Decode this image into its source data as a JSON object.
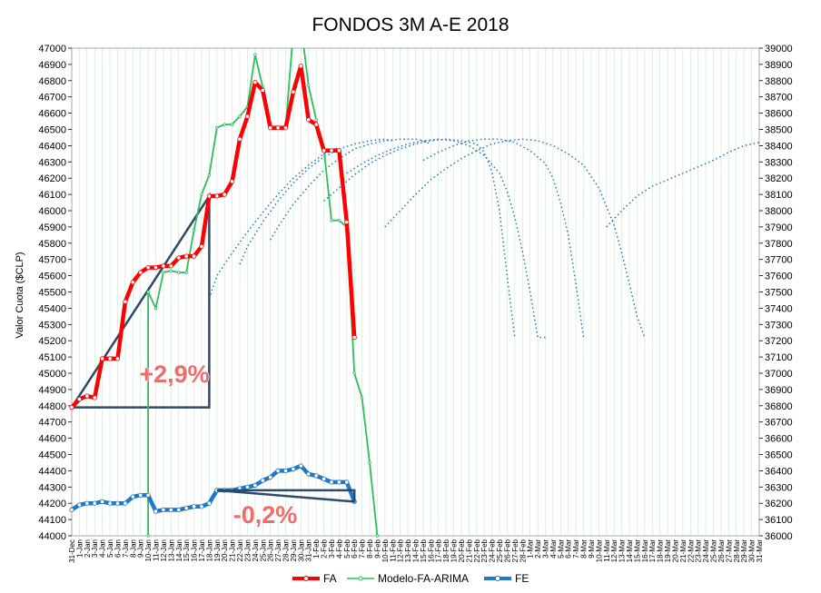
{
  "chart_data": {
    "type": "line",
    "title": "FONDOS 3M A-E 2018",
    "ylabel": "Valor Cuota ($CLP)",
    "y_left_range": [
      44000,
      47000
    ],
    "y_right_range": [
      36000,
      39000
    ],
    "y_left_ticks": [
      "44000",
      "44100",
      "44200",
      "44300",
      "44400",
      "44500",
      "44600",
      "44700",
      "44800",
      "44900",
      "45000",
      "45100",
      "45200",
      "45300",
      "45400",
      "45500",
      "45600",
      "45700",
      "45800",
      "45900",
      "46000",
      "46100",
      "46200",
      "46300",
      "46400",
      "46500",
      "46600",
      "46700",
      "46800",
      "46900",
      "47000"
    ],
    "y_right_ticks": [
      "36000",
      "36100",
      "36200",
      "36300",
      "36400",
      "36500",
      "36600",
      "36700",
      "36800",
      "36900",
      "37000",
      "37100",
      "37200",
      "37300",
      "37400",
      "37500",
      "37600",
      "37700",
      "37800",
      "37900",
      "38000",
      "38100",
      "38200",
      "38300",
      "38400",
      "38500",
      "38600",
      "38700",
      "38800",
      "38900",
      "39000"
    ],
    "x_labels": [
      "31-Dec",
      "1-Jan",
      "2-Jan",
      "3-Jan",
      "4-Jan",
      "5-Jan",
      "6-Jan",
      "7-Jan",
      "8-Jan",
      "9-Jan",
      "10-Jan",
      "11-Jan",
      "12-Jan",
      "13-Jan",
      "14-Jan",
      "15-Jan",
      "16-Jan",
      "17-Jan",
      "18-Jan",
      "19-Jan",
      "20-Jan",
      "21-Jan",
      "22-Jan",
      "23-Jan",
      "24-Jan",
      "25-Jan",
      "26-Jan",
      "27-Jan",
      "28-Jan",
      "29-Jan",
      "30-Jan",
      "31-Jan",
      "1-Feb",
      "2-Feb",
      "3-Feb",
      "4-Feb",
      "5-Feb",
      "6-Feb",
      "7-Feb",
      "8-Feb",
      "9-Feb",
      "10-Feb",
      "11-Feb",
      "12-Feb",
      "13-Feb",
      "14-Feb",
      "15-Feb",
      "16-Feb",
      "17-Feb",
      "18-Feb",
      "19-Feb",
      "20-Feb",
      "21-Feb",
      "22-Feb",
      "23-Feb",
      "24-Feb",
      "25-Feb",
      "26-Feb",
      "27-Feb",
      "28-Feb",
      "1-Mar",
      "2-Mar",
      "3-Mar",
      "4-Mar",
      "5-Mar",
      "6-Mar",
      "7-Mar",
      "8-Mar",
      "9-Mar",
      "10-Mar",
      "11-Mar",
      "12-Mar",
      "13-Mar",
      "14-Mar",
      "15-Mar",
      "16-Mar",
      "17-Mar",
      "18-Mar",
      "19-Mar",
      "20-Mar",
      "21-Mar",
      "22-Mar",
      "23-Mar",
      "24-Mar",
      "25-Mar",
      "26-Mar",
      "27-Mar",
      "28-Mar",
      "29-Mar",
      "30-Mar",
      "31-Mar"
    ],
    "series": [
      {
        "name": "FA",
        "axis": "left",
        "color": "#ff0000",
        "x": [
          0,
          1,
          2,
          3,
          4,
          5,
          6,
          7,
          8,
          9,
          10,
          11,
          12,
          13,
          14,
          15,
          16,
          17,
          18,
          19,
          20,
          21,
          22,
          23,
          24,
          25,
          26,
          27,
          28,
          29,
          30,
          31,
          32,
          33,
          34,
          35,
          36,
          37
        ],
        "values": [
          44790,
          44840,
          44860,
          44850,
          45090,
          45090,
          45090,
          45440,
          45560,
          45620,
          45650,
          45650,
          45660,
          45660,
          45710,
          45720,
          45720,
          45780,
          46090,
          46090,
          46100,
          46180,
          46440,
          46580,
          46790,
          46740,
          46510,
          46510,
          46510,
          46730,
          46890,
          46560,
          46530,
          46370,
          46370,
          46370,
          45930,
          45220
        ]
      },
      {
        "name": "Modelo-FA-ARIMA",
        "axis": "left",
        "color": "#2ebd5f",
        "x": [
          10,
          10,
          11,
          12,
          13,
          14,
          15,
          16,
          17,
          18,
          19,
          20,
          21,
          22,
          23,
          24,
          25,
          26,
          27,
          28,
          29,
          30,
          31,
          32,
          33,
          34,
          35,
          36,
          37,
          38,
          39,
          40
        ],
        "values": [
          44000,
          45500,
          45400,
          45620,
          45630,
          45620,
          45620,
          45880,
          46100,
          46220,
          46510,
          46530,
          46530,
          46580,
          46640,
          46960,
          46760,
          46510,
          46510,
          46510,
          47100,
          47150,
          46770,
          46560,
          46380,
          45940,
          45940,
          45900,
          45000,
          44850,
          44450,
          44000
        ]
      },
      {
        "name": "FE",
        "axis": "right",
        "color": "#1f78c8",
        "x": [
          0,
          1,
          2,
          3,
          4,
          5,
          6,
          7,
          8,
          9,
          10,
          11,
          12,
          13,
          14,
          15,
          16,
          17,
          18,
          19,
          20,
          21,
          22,
          23,
          24,
          25,
          26,
          27,
          28,
          29,
          30,
          31,
          32,
          33,
          34,
          35,
          36,
          37
        ],
        "values": [
          36160,
          36190,
          36200,
          36200,
          36210,
          36200,
          36200,
          36200,
          36240,
          36250,
          36250,
          36150,
          36160,
          36160,
          36160,
          36170,
          36180,
          36180,
          36200,
          36280,
          36280,
          36280,
          36290,
          36300,
          36310,
          36340,
          36360,
          36400,
          36400,
          36410,
          36430,
          36380,
          36370,
          36350,
          36330,
          36330,
          36330,
          36210
        ]
      }
    ],
    "forecasts": [
      {
        "axis": "left",
        "x": [
          18,
          19,
          21,
          23,
          25,
          27,
          29,
          31,
          33,
          35
        ],
        "values": [
          45460,
          45600,
          45740,
          45870,
          45990,
          46100,
          46200,
          46280,
          46350,
          46390
        ]
      },
      {
        "axis": "left",
        "x": [
          22,
          23,
          25,
          27,
          29,
          31,
          33,
          35,
          37,
          39,
          41,
          42
        ],
        "values": [
          45670,
          45780,
          45930,
          46060,
          46170,
          46260,
          46330,
          46380,
          46410,
          46430,
          46440,
          46430
        ]
      },
      {
        "axis": "left",
        "x": [
          26,
          27,
          29,
          31,
          33,
          35,
          37,
          39,
          41,
          43,
          45,
          46,
          47
        ],
        "values": [
          45820,
          45900,
          46040,
          46150,
          46250,
          46320,
          46380,
          46410,
          46430,
          46440,
          46440,
          46430,
          46410
        ]
      },
      {
        "axis": "left",
        "x": [
          33,
          35,
          37,
          39,
          41,
          43,
          45,
          47,
          49,
          51,
          53,
          54,
          55,
          56,
          57,
          58
        ],
        "values": [
          46060,
          46140,
          46220,
          46290,
          46340,
          46380,
          46410,
          46430,
          46440,
          46430,
          46410,
          46360,
          46240,
          46000,
          45600,
          45220
        ]
      },
      {
        "axis": "left",
        "x": [
          36,
          38,
          40,
          42,
          44,
          46,
          48,
          50,
          52,
          54,
          56,
          57,
          58,
          59,
          60,
          61,
          62
        ],
        "values": [
          46230,
          46290,
          46340,
          46380,
          46410,
          46430,
          46440,
          46430,
          46400,
          46340,
          46230,
          46120,
          45960,
          45750,
          45500,
          45220,
          45220
        ]
      },
      {
        "axis": "left",
        "x": [
          46,
          48,
          50,
          52,
          54,
          56,
          58,
          60,
          62,
          63,
          64,
          65,
          66,
          67
        ],
        "values": [
          46310,
          46360,
          46400,
          46430,
          46440,
          46440,
          46420,
          46370,
          46290,
          46200,
          46050,
          45850,
          45550,
          45220
        ]
      },
      {
        "axis": "left",
        "x": [
          41,
          43,
          45,
          47,
          49,
          51,
          53,
          55,
          57,
          59,
          61,
          63,
          65,
          67,
          69,
          71,
          72,
          73,
          74,
          75
        ],
        "values": [
          45900,
          46000,
          46100,
          46190,
          46260,
          46320,
          46370,
          46410,
          46430,
          46440,
          46430,
          46400,
          46350,
          46280,
          46140,
          45910,
          45740,
          45550,
          45350,
          45220
        ]
      },
      {
        "axis": "left",
        "x": [
          70,
          72,
          74,
          76,
          78,
          80,
          82,
          84,
          86,
          88,
          90
        ],
        "values": [
          45900,
          46000,
          46090,
          46150,
          46190,
          46230,
          46270,
          46310,
          46360,
          46400,
          46420
        ]
      }
    ],
    "annotations": {
      "up_label": "+2,9%",
      "down_label": "-0,2%"
    }
  },
  "legend": [
    {
      "label": "FA",
      "color": "#ff0000"
    },
    {
      "label": "Modelo-FA-ARIMA",
      "color": "#2ebd5f"
    },
    {
      "label": "FE",
      "color": "#1f78c8"
    }
  ]
}
